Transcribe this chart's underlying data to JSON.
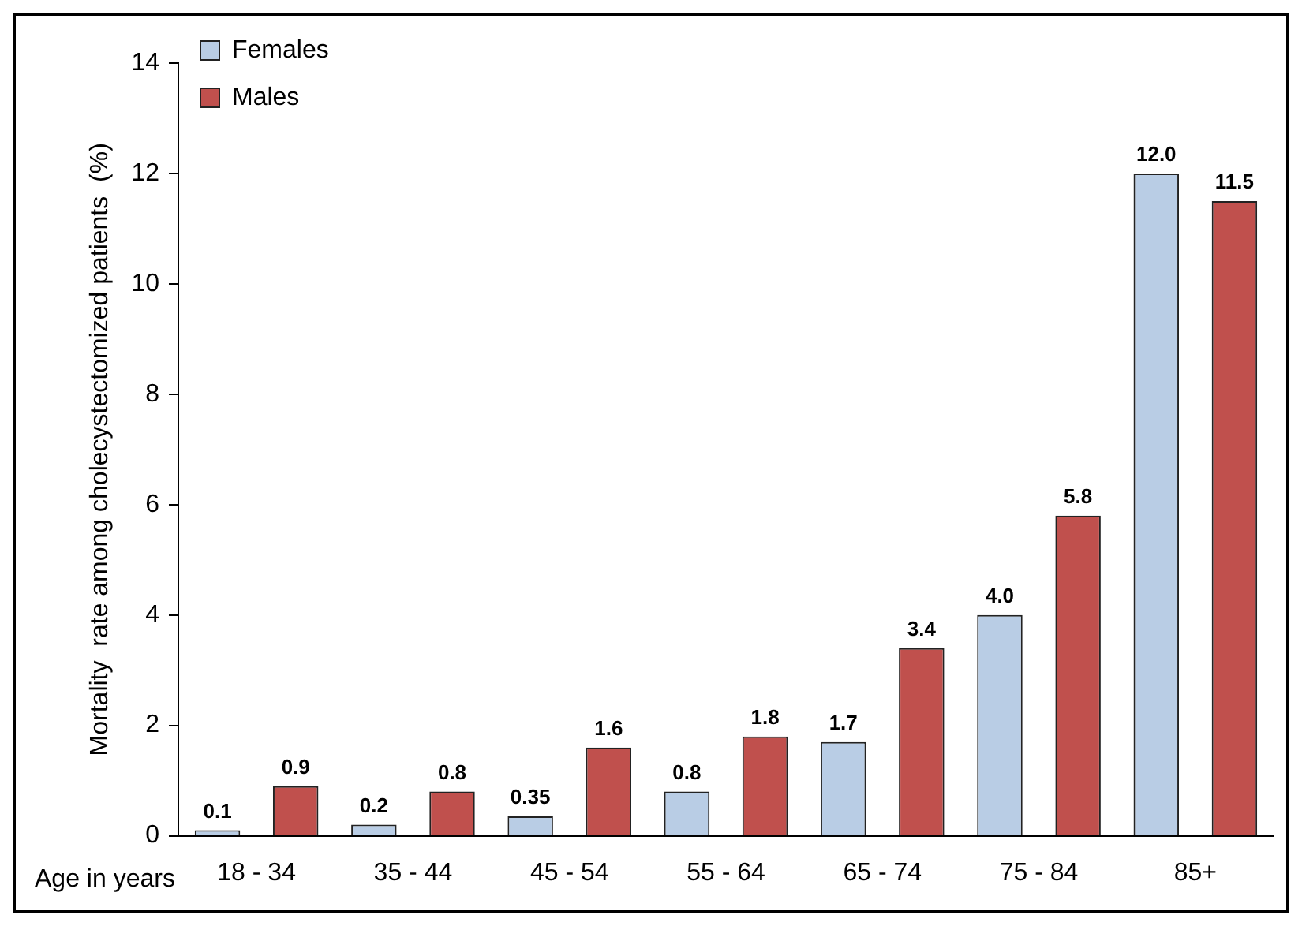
{
  "chart_data": {
    "type": "bar",
    "xlabel": "Age in years",
    "ylabel": "Mortality  rate among cholecystectomized patients  (%)",
    "categories": [
      "18 - 34",
      "35 - 44",
      "45 - 54",
      "55 - 64",
      "65 - 74",
      "75 - 84",
      "85+"
    ],
    "series": [
      {
        "name": "Females",
        "color": "#b9cde5",
        "values": [
          0.1,
          0.2,
          0.35,
          0.8,
          1.7,
          4.0,
          12.0
        ],
        "value_labels": [
          "0.1",
          "0.2",
          "0.35",
          "0.8",
          "1.7",
          "4.0",
          "12.0"
        ]
      },
      {
        "name": "Males",
        "color": "#c0504d",
        "values": [
          0.9,
          0.8,
          1.6,
          1.8,
          3.4,
          5.8,
          11.5
        ],
        "value_labels": [
          "0.9",
          "0.8",
          "1.6",
          "1.8",
          "3.4",
          "5.8",
          "11.5"
        ]
      }
    ],
    "ylim": [
      0,
      14
    ],
    "yticks": [
      0,
      2,
      4,
      6,
      8,
      10,
      12,
      14
    ],
    "grid": false,
    "legend": "top left"
  }
}
